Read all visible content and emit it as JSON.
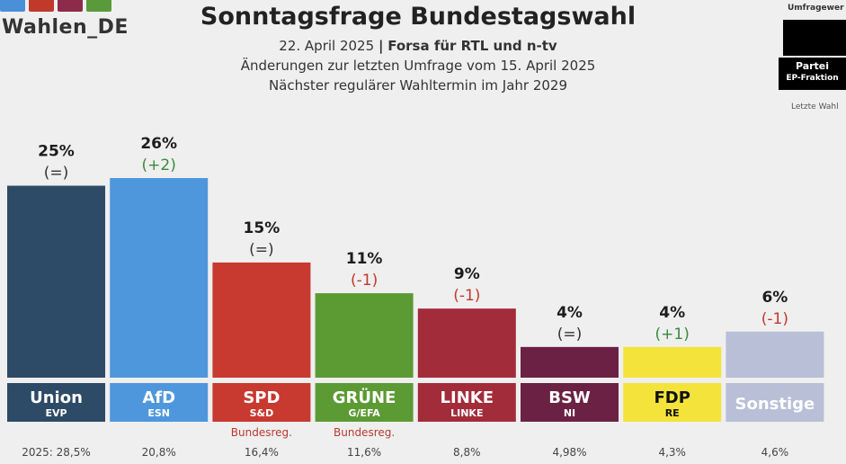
{
  "header": {
    "brand": "Wahlen_DE",
    "brand_bar_colors": [
      "#4a90d9",
      "#c0392b",
      "#8e2a4a",
      "#5a9a3a"
    ],
    "title": "Sonntagsfrage Bundestagswahl",
    "date": "22. April 2025",
    "separator": "|",
    "source": "Forsa für RTL und n-tv",
    "changes_note": "Änderungen zur letzten Umfrage vom 15. April 2025",
    "next_election": "Nächster regulärer Wahltermin im Jahr 2029"
  },
  "side_panel": {
    "caption": "Umfragewer",
    "box_line1": "Partei",
    "box_line2": "EP-Fraktion",
    "footer": "Letzte Wahl"
  },
  "chart_data": {
    "type": "bar",
    "title": "Sonntagsfrage Bundestagswahl",
    "unit": "%",
    "ylim": [
      0,
      26
    ],
    "categories": [
      "Union",
      "AfD",
      "SPD",
      "GRÜNE",
      "LINKE",
      "BSW",
      "FDP",
      "Sonstige"
    ],
    "values": [
      25,
      26,
      15,
      11,
      9,
      4,
      4,
      6
    ],
    "value_labels": [
      "25%",
      "26%",
      "15%",
      "11%",
      "9%",
      "4%",
      "4%",
      "6%"
    ],
    "changes": [
      "(=)",
      "(+2)",
      "(=)",
      "(-1)",
      "(-1)",
      "(=)",
      "(+1)",
      "(-1)"
    ],
    "ep_groups": [
      "EVP",
      "ESN",
      "S&D",
      "G/EFA",
      "LINKE",
      "NI",
      "RE",
      ""
    ],
    "government_label": [
      "",
      "",
      "Bundesreg.",
      "Bundesreg.",
      "",
      "",
      "",
      ""
    ],
    "previous_election": [
      "2025: 28,5%",
      "20,8%",
      "16,4%",
      "11,6%",
      "8,8%",
      "4,98%",
      "4,3%",
      "4,6%"
    ],
    "colors": [
      "#2d4a66",
      "#4f97dc",
      "#c8392f",
      "#5c9a34",
      "#a32c3a",
      "#6b2144",
      "#f3e33b",
      "#b8bfd6"
    ],
    "label_text_colors": [
      "#ffffff",
      "#ffffff",
      "#ffffff",
      "#ffffff",
      "#ffffff",
      "#ffffff",
      "#111111",
      "#ffffff"
    ],
    "change_colors": [
      "#333333",
      "#3a8a3a",
      "#333333",
      "#c0392b",
      "#c0392b",
      "#333333",
      "#3a8a3a",
      "#c0392b"
    ],
    "grid": false
  }
}
